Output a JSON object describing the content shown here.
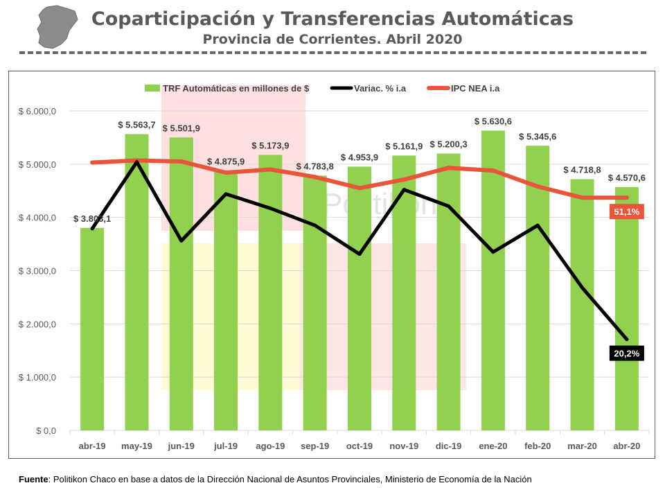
{
  "header": {
    "title": "Coparticipación y Transferencias Automáticas",
    "subtitle": "Provincia de Corrientes. Abril 2020"
  },
  "source": {
    "label": "Fuente",
    "text": ": Politikon Chaco en base a datos de la Dirección Nacional de Asuntos Provinciales, Ministerio de Economía de la Nación"
  },
  "watermark": "Politikon",
  "colors": {
    "bars": "#92d050",
    "variation_line": "#000000",
    "ipc_line": "#e8553a",
    "grid": "#d9d9d9",
    "text": "#595959"
  },
  "chart_data": {
    "type": "bar",
    "categories": [
      "abr-19",
      "may-19",
      "jun-19",
      "jul-19",
      "ago-19",
      "sep-19",
      "oct-19",
      "nov-19",
      "dic-19",
      "ene-20",
      "feb-20",
      "mar-20",
      "abr-20"
    ],
    "ylim": [
      0,
      6000
    ],
    "yticks": [
      0,
      1000,
      2000,
      3000,
      4000,
      5000,
      6000
    ],
    "ytick_labels": [
      "$ 0,0",
      "$ 1.000,0",
      "$ 2.000,0",
      "$ 3.000,0",
      "$ 4.000,0",
      "$ 5.000,0",
      "$ 6.000,0"
    ],
    "grid": true,
    "legend_position": "top",
    "series": [
      {
        "name": "TRF Automáticas en millones de $",
        "kind": "bar",
        "values": [
          3803.1,
          5563.7,
          5501.9,
          4875.9,
          5173.9,
          4783.8,
          4953.9,
          5161.9,
          5200.3,
          5630.6,
          5345.6,
          4718.8,
          4570.6
        ],
        "labels": [
          "$ 3.803,1",
          "$ 5.563,7",
          "$ 5.501,9",
          "$ 4.875,9",
          "$ 5.173,9",
          "$ 4.783,8",
          "$ 4.953,9",
          "$ 5.161,9",
          "$ 5.200,3",
          "$ 5.630,6",
          "$ 5.345,6",
          "$ 4.718,8",
          "$ 4.570,6"
        ]
      },
      {
        "name": "Variac. % i.a",
        "kind": "line",
        "plot_values": [
          3790,
          5040,
          3560,
          4440,
          4170,
          3850,
          3310,
          4520,
          4210,
          3350,
          3850,
          2680,
          1710
        ],
        "end_label": "20,2%"
      },
      {
        "name": "IPC NEA i.a",
        "kind": "line",
        "plot_values": [
          5030,
          5070,
          5050,
          4840,
          4900,
          4760,
          4550,
          4710,
          4930,
          4880,
          4580,
          4370,
          4370
        ],
        "end_label": "51,1%"
      }
    ]
  }
}
